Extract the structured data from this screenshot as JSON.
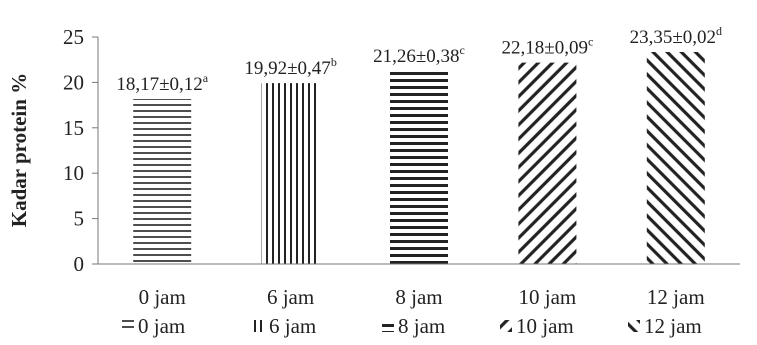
{
  "chart_data": {
    "type": "bar",
    "ylabel": "Kadar protein %",
    "xlabel": "",
    "ylim": [
      0,
      25
    ],
    "yticks": [
      0,
      5,
      10,
      15,
      20,
      25
    ],
    "categories": [
      "0 jam",
      "6 jam",
      "8 jam",
      "10 jam",
      "12 jam"
    ],
    "values": [
      18.17,
      19.92,
      21.26,
      22.18,
      23.35
    ],
    "value_labels": [
      "18,17±0,12",
      "19,92±0,47",
      "21,26±0,38",
      "22,18±0,09",
      "23,35±0,02"
    ],
    "letters": [
      "a",
      "b",
      "c",
      "c",
      "d"
    ],
    "patterns": [
      "horizontal",
      "vertical",
      "horizontal-bold",
      "diagonal-down",
      "diagonal-up"
    ],
    "legend": [
      "0 jam",
      "6 jam",
      "8 jam",
      "10 jam",
      "12 jam"
    ],
    "legend_position": "bottom",
    "grid": false
  }
}
